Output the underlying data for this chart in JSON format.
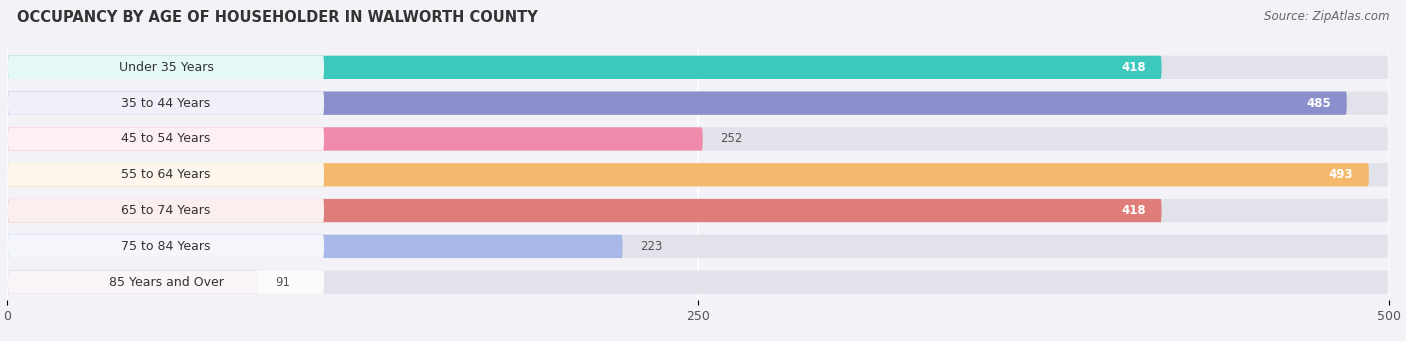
{
  "title": "OCCUPANCY BY AGE OF HOUSEHOLDER IN WALWORTH COUNTY",
  "source": "Source: ZipAtlas.com",
  "categories": [
    "Under 35 Years",
    "35 to 44 Years",
    "45 to 54 Years",
    "55 to 64 Years",
    "65 to 74 Years",
    "75 to 84 Years",
    "85 Years and Over"
  ],
  "values": [
    418,
    485,
    252,
    493,
    418,
    223,
    91
  ],
  "bar_colors": [
    "#3dc8be",
    "#8b8fcc",
    "#f08aaa",
    "#f5b96e",
    "#e07d78",
    "#a8b8e8",
    "#c8a8cc"
  ],
  "xlim": [
    0,
    500
  ],
  "xticks": [
    0,
    250,
    500
  ],
  "background_color": "#f2f2f7",
  "bar_bg_color": "#e2e2ea",
  "label_bg_color": "#ffffff",
  "title_fontsize": 10.5,
  "label_fontsize": 9,
  "value_fontsize": 8.5,
  "source_fontsize": 8.5,
  "figsize": [
    14.06,
    3.41
  ],
  "dpi": 100,
  "bar_height": 0.65,
  "value_threshold": 350
}
